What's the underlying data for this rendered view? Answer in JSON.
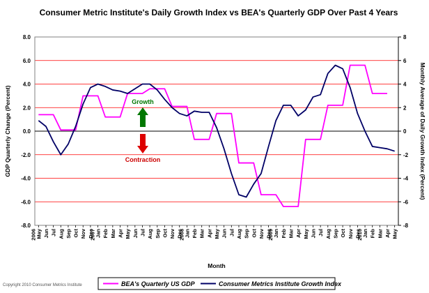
{
  "chart_data": {
    "type": "line",
    "title": "Consumer Metric Institute's Daily Growth Index vs BEA's Quarterly GDP Over Past 4 Years",
    "xlabel": "Month",
    "ylabel_left": "GDP Quarterly Change (Percent)",
    "ylabel_right": "Monthly Average of Daily Growth Index (Percent)",
    "y_left_range": [
      -8,
      8
    ],
    "y_right_range": [
      -8,
      8
    ],
    "y_left_ticks": [
      "8.0",
      "6.0",
      "4.0",
      "2.0",
      "0.0",
      "-2.0",
      "-4.0",
      "-6.0",
      "-8.0"
    ],
    "y_right_ticks": [
      "8",
      "6",
      "4",
      "2",
      "0",
      "-2",
      "-4",
      "-6",
      "-8"
    ],
    "months": [
      "May",
      "Jun",
      "Jul",
      "Aug",
      "Sep",
      "Oct",
      "Nov",
      "Dec",
      "Jan",
      "Feb",
      "Mar",
      "Apr",
      "May",
      "Jun",
      "Jul",
      "Aug",
      "Sep",
      "Oct",
      "Nov",
      "Dec",
      "Jan",
      "Feb",
      "Mar",
      "Apr",
      "May",
      "Jun",
      "Jul",
      "Aug",
      "Sep",
      "Oct",
      "Nov",
      "Dec",
      "Jan",
      "Feb",
      "Mar",
      "Apr",
      "May",
      "Jun",
      "Jul",
      "Aug",
      "Sep",
      "Oct",
      "Nov",
      "Dec",
      "Jan",
      "Feb",
      "Mar",
      "Apr",
      "May"
    ],
    "year_labels": [
      {
        "label": "2006",
        "index": 0
      },
      {
        "label": "2007",
        "index": 8
      },
      {
        "label": "2008",
        "index": 20
      },
      {
        "label": "2009",
        "index": 32
      },
      {
        "label": "2010",
        "index": 44
      }
    ],
    "grid": true,
    "legend_position": "bottom",
    "series": [
      {
        "name": "BEA's Quarterly US GDP",
        "color": "#ff00ff",
        "values": [
          1.4,
          1.4,
          1.4,
          0.1,
          0.1,
          0.1,
          3.0,
          3.0,
          3.0,
          1.2,
          1.2,
          1.2,
          3.2,
          3.2,
          3.2,
          3.6,
          3.6,
          3.6,
          2.1,
          2.1,
          2.1,
          -0.7,
          -0.7,
          -0.7,
          1.5,
          1.5,
          1.5,
          -2.7,
          -2.7,
          -2.7,
          -5.4,
          -5.4,
          -5.4,
          -6.4,
          -6.4,
          -6.4,
          -0.7,
          -0.7,
          -0.7,
          2.2,
          2.2,
          2.2,
          5.6,
          5.6,
          5.6,
          3.2,
          3.2,
          3.2,
          null
        ]
      },
      {
        "name": "Consumer Metrics Institute Growth Index",
        "color": "#000066",
        "values": [
          0.9,
          0.4,
          -0.9,
          -2.0,
          -1.1,
          0.4,
          2.3,
          3.7,
          4.0,
          3.8,
          3.5,
          3.4,
          3.2,
          3.6,
          4.0,
          4.0,
          3.5,
          2.7,
          2.0,
          1.5,
          1.3,
          1.7,
          1.6,
          1.6,
          0.3,
          -1.5,
          -3.6,
          -5.4,
          -5.6,
          -4.5,
          -3.6,
          -1.3,
          0.9,
          2.2,
          2.2,
          1.3,
          1.8,
          2.9,
          3.1,
          4.9,
          5.6,
          5.3,
          3.7,
          1.5,
          0.0,
          -1.3,
          -1.4,
          -1.5,
          -1.7
        ]
      }
    ],
    "annotations": [
      {
        "text": "Growth",
        "color": "#007700"
      },
      {
        "text": "Contraction",
        "color": "#cc0000"
      }
    ]
  },
  "copyright": "Copyright 2010 Consumer Metrics Institute"
}
